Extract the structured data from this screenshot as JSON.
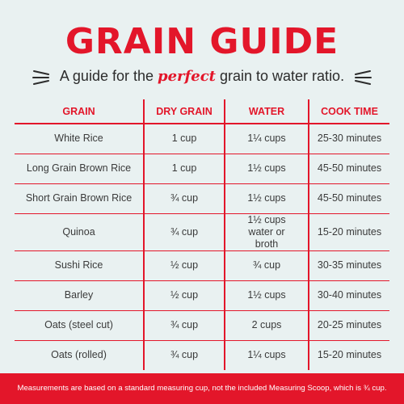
{
  "title": "GRAIN GUIDE",
  "subtitle": {
    "before": "A guide for the ",
    "emphasis": "perfect",
    "after": " grain to water ratio."
  },
  "colors": {
    "accent": "#e3162a",
    "background": "#e9f1f1",
    "text": "#2c2c2c"
  },
  "table": {
    "headers": [
      "GRAIN",
      "DRY GRAIN",
      "WATER",
      "COOK TIME"
    ],
    "rows": [
      [
        "White Rice",
        "1 cup",
        "1¼ cups",
        "25-30 minutes"
      ],
      [
        "Long Grain Brown Rice",
        "1 cup",
        "1½ cups",
        "45-50 minutes"
      ],
      [
        "Short Grain Brown Rice",
        "¾ cup",
        "1½ cups",
        "45-50 minutes"
      ],
      [
        "Quinoa",
        "¾ cup",
        "1½ cups water or broth",
        "15-20 minutes"
      ],
      [
        "Sushi Rice",
        "½ cup",
        "¾ cup",
        "30-35 minutes"
      ],
      [
        "Barley",
        "½ cup",
        "1½ cups",
        "30-40 minutes"
      ],
      [
        "Oats (steel cut)",
        "¾ cup",
        "2 cups",
        "20-25 minutes"
      ],
      [
        "Oats (rolled)",
        "¾ cup",
        "1¼ cups",
        "15-20 minutes"
      ]
    ]
  },
  "footer": "Measurements are based on a standard measuring cup, not the included Measuring Scoop, which is ¾ cup."
}
